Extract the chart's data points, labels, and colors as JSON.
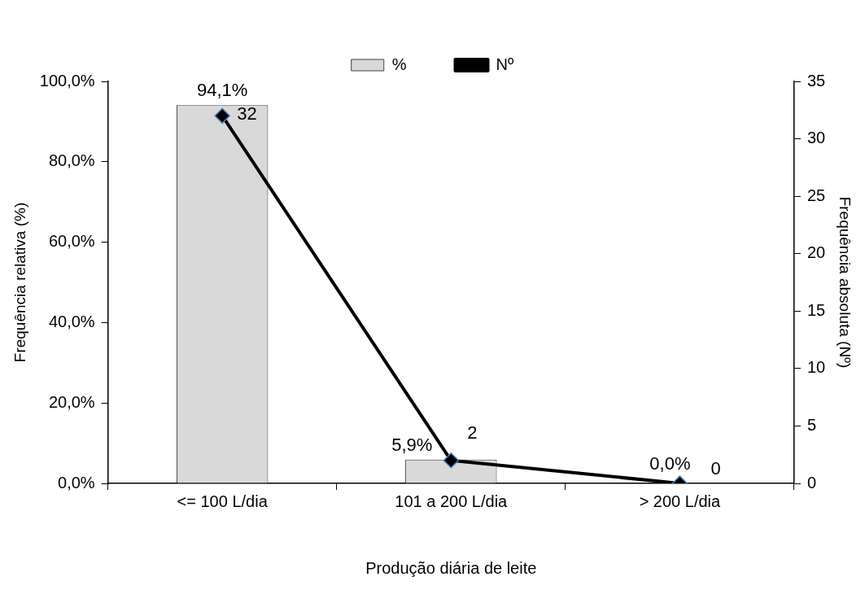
{
  "chart_data": {
    "type": "bar",
    "xlabel": "Produção diária de leite",
    "ylabel": "Frequência relativa (%)",
    "y2label": "Frequência absoluta (Nº)",
    "categories": [
      "<= 100 L/dia",
      "101 a 200 L/dia",
      "> 200 L/dia"
    ],
    "series": [
      {
        "name": "%",
        "color": "#d9d9d9",
        "values": [
          94.1,
          5.9,
          0.0
        ],
        "value_labels": [
          "94,1%",
          "5,9%",
          "0,0%"
        ]
      },
      {
        "name": "Nº",
        "type": "line",
        "axis": "y2",
        "color": "#000000",
        "marker": "diamond",
        "values": [
          32,
          2,
          0
        ],
        "value_labels": [
          "32",
          "2",
          "0"
        ]
      }
    ],
    "ylim": [
      0,
      100
    ],
    "yticks": [
      {
        "value": 0,
        "label": "0,0%"
      },
      {
        "value": 20,
        "label": "20,0%"
      },
      {
        "value": 40,
        "label": "40,0%"
      },
      {
        "value": 60,
        "label": "60,0%"
      },
      {
        "value": 80,
        "label": "80,0%"
      },
      {
        "value": 100,
        "label": "100,0%"
      }
    ],
    "y2lim": [
      0,
      35
    ],
    "y2ticks": [
      0,
      5,
      10,
      15,
      20,
      25,
      30,
      35
    ],
    "grid": false,
    "legend": "top"
  }
}
